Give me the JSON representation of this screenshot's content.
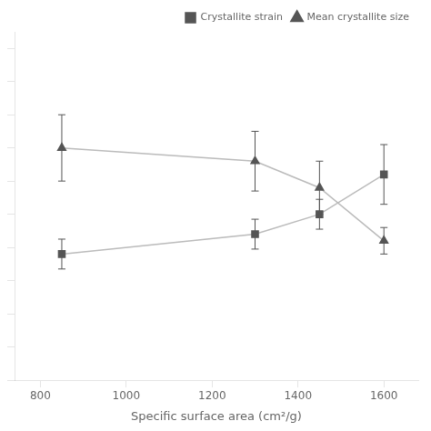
{
  "chart_data": {
    "type": "line",
    "x_label": "Specific surface area (cm²/g)",
    "x": [
      850,
      1300,
      1450,
      1600
    ],
    "series": [
      {
        "name": "Crystallite strain",
        "values": [
          0.38,
          0.44,
          0.5,
          0.62
        ],
        "yerr": [
          0.045,
          0.045,
          0.045,
          0.09
        ],
        "color": "#bbbbbb",
        "marker_color": "#555555",
        "marker": "square",
        "line_style": "solid"
      },
      {
        "name": "Mean crystallite size",
        "values": [
          0.7,
          0.66,
          0.58,
          0.42
        ],
        "yerr": [
          0.1,
          0.09,
          0.08,
          0.04
        ],
        "color": "#bbbbbb",
        "marker_color": "#555555",
        "marker": "triangle",
        "line_style": "solid"
      }
    ],
    "xlim": [
      740,
      1680
    ],
    "ylim": [
      0.0,
      1.05
    ],
    "xticks": [
      800,
      1000,
      1200,
      1400,
      1600
    ],
    "yticks": [
      0.0,
      0.1,
      0.2,
      0.3,
      0.4,
      0.5,
      0.6,
      0.7,
      0.8,
      0.9,
      1.0
    ],
    "tick_labels": "x",
    "grid": false,
    "legend": "upper right"
  }
}
